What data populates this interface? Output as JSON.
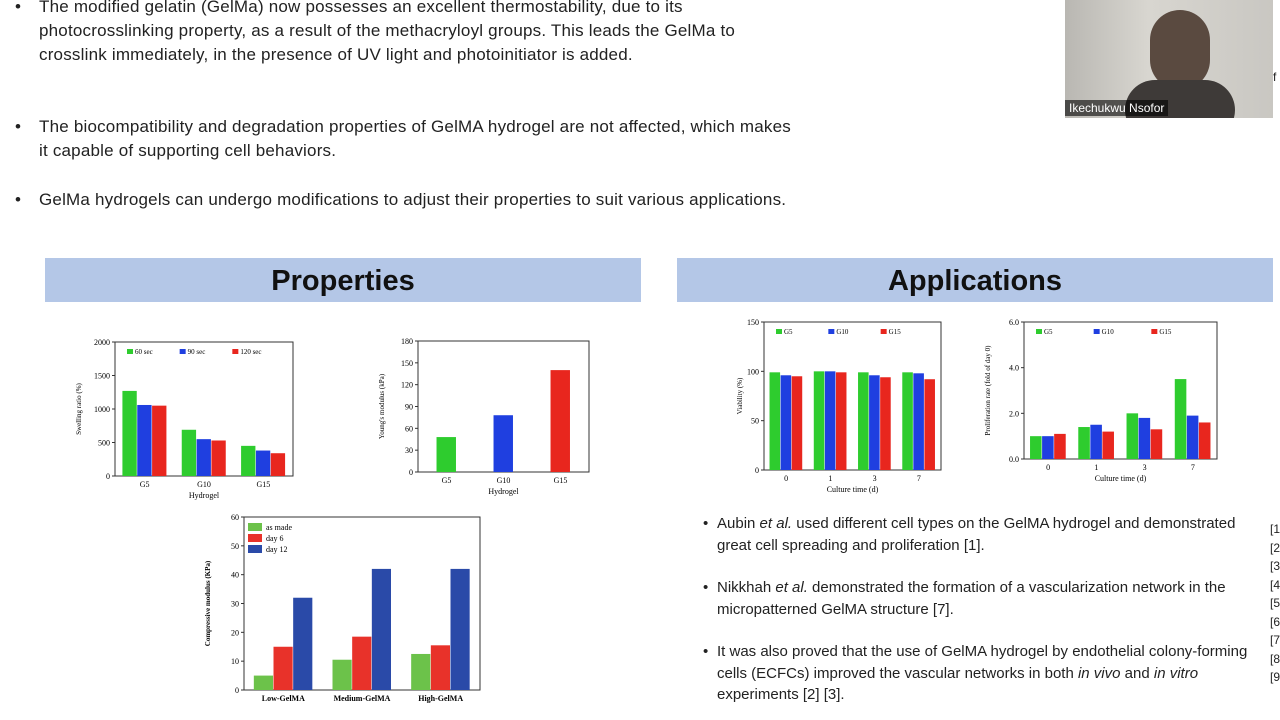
{
  "top_bullets": [
    "The modified gelatin (GelMa) now possesses an excellent thermostability, due to its photocrosslinking property, as a result of the methacryloyl groups. This leads the GelMa to crosslink immediately, in the presence of UV light and photoinitiator is added.",
    "The biocompatibility and degradation properties of GelMA hydrogel are not affected, which makes it capable of supporting cell behaviors.",
    "GelMa hydrogels can undergo modifications to adjust their properties to suit various applications."
  ],
  "headers": {
    "left": "Properties",
    "right": "Applications"
  },
  "video": {
    "name": "Ikechukwu Nsofor"
  },
  "edge_text": "f",
  "references": [
    "[1",
    "[2",
    "[3",
    "[4",
    "[5",
    "[6",
    "[7",
    "[8",
    "[9"
  ],
  "bottom_bullets": [
    [
      {
        "text": "Aubin "
      },
      {
        "text": "et al.",
        "italic": true
      },
      {
        "text": " used different cell types on the GelMA hydrogel and demonstrated great cell spreading and proliferation [1]."
      }
    ],
    [
      {
        "text": "Nikkhah "
      },
      {
        "text": "et al.",
        "italic": true
      },
      {
        "text": " demonstrated the formation of a vascularization network in the micropatterned GelMA structure [7]."
      }
    ],
    [
      {
        "text": "It was also proved that the use of GelMA hydrogel by endothelial colony-forming cells (ECFCs) improved the vascular networks in both "
      },
      {
        "text": "in vivo",
        "italic": true
      },
      {
        "text": " and "
      },
      {
        "text": "in vitro",
        "italic": true
      },
      {
        "text": " experiments [2] [3]."
      }
    ]
  ],
  "charts": [
    {
      "type": "bar",
      "ylabel": "Swelling ratio (%)",
      "xlabel": "Hydrogel",
      "categories": [
        "G5",
        "G10",
        "G15"
      ],
      "ylim": [
        0,
        2000
      ],
      "yticks": [
        0,
        500,
        1000,
        1500,
        2000
      ],
      "legend": "top-row",
      "series": [
        {
          "name": "60 sec",
          "color": "#2ecc2e",
          "values": [
            1270,
            690,
            450
          ]
        },
        {
          "name": "90 sec",
          "color": "#1f3fe0",
          "values": [
            1060,
            550,
            380
          ]
        },
        {
          "name": "120 sec",
          "color": "#e8261e",
          "values": [
            1050,
            530,
            340
          ]
        }
      ]
    },
    {
      "type": "bar",
      "ylabel": "Young's modulus (kPa)",
      "xlabel": "Hydrogel",
      "categories": [
        "G5",
        "G10",
        "G15"
      ],
      "ylim": [
        0,
        180
      ],
      "yticks": [
        0,
        30,
        60,
        90,
        120,
        150,
        180
      ],
      "legend": "none",
      "series": [
        {
          "values": [
            48,
            78,
            140
          ],
          "colors": [
            "#2ecc2e",
            "#1f3fe0",
            "#e8261e"
          ]
        }
      ]
    },
    {
      "type": "bar",
      "ylabel": "Compressive modulus (KPa)",
      "categories": [
        "Low-GelMA",
        "Medium-GelMA",
        "High-GelMA"
      ],
      "ylim": [
        0,
        60
      ],
      "yticks": [
        0,
        10,
        20,
        30,
        40,
        50,
        60
      ],
      "legend": "top-left-column",
      "series": [
        {
          "name": "as made",
          "color": "#6cc24a",
          "values": [
            5,
            10.5,
            12.5
          ]
        },
        {
          "name": "day 6",
          "color": "#e8322a",
          "values": [
            15,
            18.5,
            15.5
          ]
        },
        {
          "name": "day 12",
          "color": "#2a4aa8",
          "values": [
            32,
            42,
            42
          ]
        }
      ]
    },
    {
      "type": "bar",
      "ylabel": "Viability (%)",
      "xlabel": "Culture time (d)",
      "categories": [
        "0",
        "1",
        "3",
        "7"
      ],
      "ylim": [
        0,
        150
      ],
      "yticks": [
        0,
        50,
        100,
        150
      ],
      "legend": "top-row",
      "series": [
        {
          "name": "G5",
          "color": "#2ecc2e",
          "values": [
            99,
            100,
            99,
            99
          ]
        },
        {
          "name": "G10",
          "color": "#1f3fe0",
          "values": [
            96,
            100,
            96,
            98
          ]
        },
        {
          "name": "G15",
          "color": "#e8261e",
          "values": [
            95,
            99,
            94,
            92
          ]
        }
      ]
    },
    {
      "type": "bar",
      "ylabel": "Proliferation rate (fold of day 0)",
      "xlabel": "Culture time (d)",
      "categories": [
        "0",
        "1",
        "3",
        "7"
      ],
      "ylim": [
        0,
        6
      ],
      "yticks": [
        {
          "value": 0,
          "label": "0.0"
        },
        {
          "value": 2,
          "label": "2.0"
        },
        {
          "value": 4,
          "label": "4.0"
        },
        {
          "value": 6,
          "label": "6.0"
        }
      ],
      "legend": "top-row",
      "series": [
        {
          "name": "G5",
          "color": "#2ecc2e",
          "values": [
            1.0,
            1.4,
            2.0,
            3.5
          ]
        },
        {
          "name": "G10",
          "color": "#1f3fe0",
          "values": [
            1.0,
            1.5,
            1.8,
            1.9
          ]
        },
        {
          "name": "G15",
          "color": "#e8261e",
          "values": [
            1.1,
            1.2,
            1.3,
            1.6
          ]
        }
      ]
    }
  ]
}
